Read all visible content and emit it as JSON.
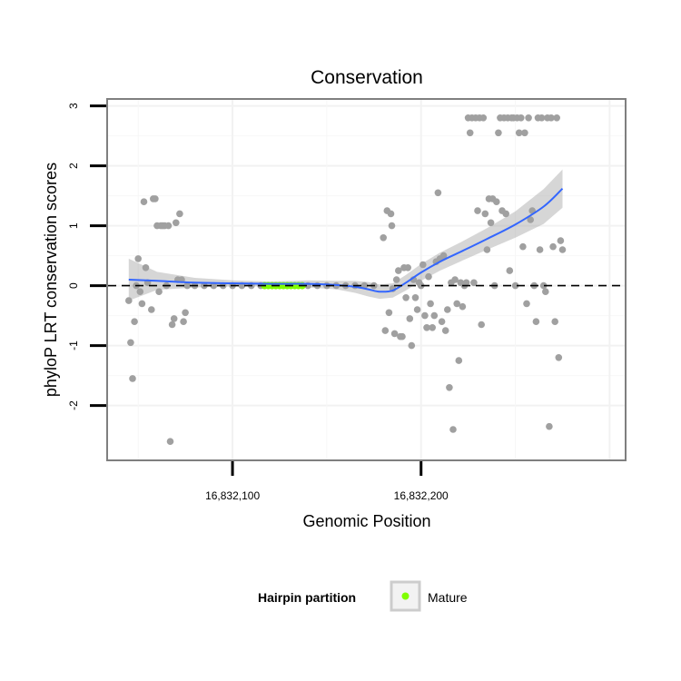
{
  "chart_data": {
    "type": "scatter",
    "title": "Conservation",
    "xlabel": "Genomic Position",
    "ylabel": "phyloP LRT conservation scores",
    "xlim": [
      16832034,
      16832308
    ],
    "ylim": [
      -2.9,
      3.1
    ],
    "x_ticks": [
      {
        "value": 16832100,
        "label": "16,832,100"
      },
      {
        "value": 16832200,
        "label": "16,832,200"
      }
    ],
    "y_ticks": [
      {
        "value": -2,
        "label": "-2"
      },
      {
        "value": -1,
        "label": "-1"
      },
      {
        "value": 0,
        "label": "0"
      },
      {
        "value": 1,
        "label": "1"
      },
      {
        "value": 2,
        "label": "2"
      },
      {
        "value": 3,
        "label": "3"
      }
    ],
    "reference_line": {
      "y": 0,
      "style": "dashed"
    },
    "grid": true,
    "points": [
      {
        "x": 16832045,
        "y": -0.25
      },
      {
        "x": 16832046,
        "y": -0.95
      },
      {
        "x": 16832047,
        "y": -1.55
      },
      {
        "x": 16832048,
        "y": -0.6
      },
      {
        "x": 16832049,
        "y": 0.0
      },
      {
        "x": 16832050,
        "y": 0.45
      },
      {
        "x": 16832051,
        "y": -0.1
      },
      {
        "x": 16832052,
        "y": -0.3
      },
      {
        "x": 16832053,
        "y": 1.4
      },
      {
        "x": 16832054,
        "y": 0.3
      },
      {
        "x": 16832055,
        "y": 0.05
      },
      {
        "x": 16832057,
        "y": -0.4
      },
      {
        "x": 16832058,
        "y": 1.45
      },
      {
        "x": 16832059,
        "y": 1.45
      },
      {
        "x": 16832060,
        "y": 1.0
      },
      {
        "x": 16832061,
        "y": -0.1
      },
      {
        "x": 16832062,
        "y": 1.0
      },
      {
        "x": 16832063,
        "y": 1.0
      },
      {
        "x": 16832064,
        "y": 1.0
      },
      {
        "x": 16832065,
        "y": 0.0
      },
      {
        "x": 16832066,
        "y": 1.0
      },
      {
        "x": 16832067,
        "y": -2.6
      },
      {
        "x": 16832068,
        "y": -0.65
      },
      {
        "x": 16832069,
        "y": -0.55
      },
      {
        "x": 16832070,
        "y": 1.05
      },
      {
        "x": 16832071,
        "y": 0.1
      },
      {
        "x": 16832072,
        "y": 1.2
      },
      {
        "x": 16832073,
        "y": 0.1
      },
      {
        "x": 16832074,
        "y": -0.6
      },
      {
        "x": 16832075,
        "y": -0.45
      },
      {
        "x": 16832076,
        "y": 0.0
      },
      {
        "x": 16832080,
        "y": 0.0
      },
      {
        "x": 16832085,
        "y": 0.0
      },
      {
        "x": 16832090,
        "y": 0.0
      },
      {
        "x": 16832095,
        "y": 0.0
      },
      {
        "x": 16832100,
        "y": 0.0
      },
      {
        "x": 16832105,
        "y": 0.0
      },
      {
        "x": 16832110,
        "y": 0.0
      },
      {
        "x": 16832115,
        "y": 0.0
      },
      {
        "x": 16832140,
        "y": 0.0
      },
      {
        "x": 16832145,
        "y": 0.0
      },
      {
        "x": 16832150,
        "y": 0.0
      },
      {
        "x": 16832155,
        "y": 0.0
      },
      {
        "x": 16832160,
        "y": 0.0
      },
      {
        "x": 16832165,
        "y": 0.0
      },
      {
        "x": 16832170,
        "y": 0.0
      },
      {
        "x": 16832175,
        "y": 0.0
      },
      {
        "x": 16832180,
        "y": 0.8
      },
      {
        "x": 16832181,
        "y": -0.75
      },
      {
        "x": 16832182,
        "y": 1.25
      },
      {
        "x": 16832183,
        "y": -0.45
      },
      {
        "x": 16832184,
        "y": 1.2
      },
      {
        "x": 16832184.5,
        "y": 1.0
      },
      {
        "x": 16832185,
        "y": -0.05
      },
      {
        "x": 16832186,
        "y": -0.8
      },
      {
        "x": 16832187,
        "y": 0.1
      },
      {
        "x": 16832188,
        "y": 0.25
      },
      {
        "x": 16832189,
        "y": -0.85
      },
      {
        "x": 16832190,
        "y": -0.85
      },
      {
        "x": 16832191,
        "y": 0.3
      },
      {
        "x": 16832192,
        "y": -0.2
      },
      {
        "x": 16832193,
        "y": 0.3
      },
      {
        "x": 16832194,
        "y": -0.55
      },
      {
        "x": 16832195,
        "y": -1.0
      },
      {
        "x": 16832196,
        "y": 0.1
      },
      {
        "x": 16832197,
        "y": -0.2
      },
      {
        "x": 16832198,
        "y": -0.4
      },
      {
        "x": 16832199,
        "y": 0.05
      },
      {
        "x": 16832200,
        "y": 0.0
      },
      {
        "x": 16832201,
        "y": 0.35
      },
      {
        "x": 16832202,
        "y": -0.5
      },
      {
        "x": 16832203,
        "y": -0.7
      },
      {
        "x": 16832204,
        "y": 0.15
      },
      {
        "x": 16832205,
        "y": -0.3
      },
      {
        "x": 16832206,
        "y": -0.7
      },
      {
        "x": 16832207,
        "y": -0.5
      },
      {
        "x": 16832208,
        "y": 0.4
      },
      {
        "x": 16832209,
        "y": 1.55
      },
      {
        "x": 16832210,
        "y": 0.45
      },
      {
        "x": 16832211,
        "y": -0.6
      },
      {
        "x": 16832212,
        "y": 0.5
      },
      {
        "x": 16832213,
        "y": -0.75
      },
      {
        "x": 16832214,
        "y": -0.4
      },
      {
        "x": 16832215,
        "y": -1.7
      },
      {
        "x": 16832216,
        "y": 0.05
      },
      {
        "x": 16832217,
        "y": -2.4
      },
      {
        "x": 16832218,
        "y": 0.1
      },
      {
        "x": 16832219,
        "y": -0.3
      },
      {
        "x": 16832220,
        "y": -1.25
      },
      {
        "x": 16832221,
        "y": 0.05
      },
      {
        "x": 16832222,
        "y": -0.35
      },
      {
        "x": 16832223,
        "y": 0.0
      },
      {
        "x": 16832224,
        "y": 0.05
      },
      {
        "x": 16832225,
        "y": 2.8
      },
      {
        "x": 16832226,
        "y": 2.55
      },
      {
        "x": 16832227,
        "y": 2.8
      },
      {
        "x": 16832228,
        "y": 0.05
      },
      {
        "x": 16832229,
        "y": 2.8
      },
      {
        "x": 16832230,
        "y": 1.25
      },
      {
        "x": 16832231,
        "y": 2.8
      },
      {
        "x": 16832232,
        "y": -0.65
      },
      {
        "x": 16832233,
        "y": 2.8
      },
      {
        "x": 16832234,
        "y": 1.2
      },
      {
        "x": 16832235,
        "y": 0.6
      },
      {
        "x": 16832236,
        "y": 1.45
      },
      {
        "x": 16832237,
        "y": 1.05
      },
      {
        "x": 16832238,
        "y": 1.45
      },
      {
        "x": 16832239,
        "y": 0.0
      },
      {
        "x": 16832240,
        "y": 1.4
      },
      {
        "x": 16832241,
        "y": 2.55
      },
      {
        "x": 16832242,
        "y": 2.8
      },
      {
        "x": 16832243,
        "y": 1.25
      },
      {
        "x": 16832244,
        "y": 2.8
      },
      {
        "x": 16832245,
        "y": 1.2
      },
      {
        "x": 16832246,
        "y": 2.8
      },
      {
        "x": 16832247,
        "y": 0.25
      },
      {
        "x": 16832248,
        "y": 2.8
      },
      {
        "x": 16832249,
        "y": 2.8
      },
      {
        "x": 16832250,
        "y": 0.0
      },
      {
        "x": 16832251,
        "y": 2.8
      },
      {
        "x": 16832252,
        "y": 2.55
      },
      {
        "x": 16832253,
        "y": 2.8
      },
      {
        "x": 16832254,
        "y": 0.65
      },
      {
        "x": 16832255,
        "y": 2.55
      },
      {
        "x": 16832256,
        "y": -0.3
      },
      {
        "x": 16832257,
        "y": 2.8
      },
      {
        "x": 16832258,
        "y": 1.1
      },
      {
        "x": 16832259,
        "y": 1.25
      },
      {
        "x": 16832260,
        "y": 0.0
      },
      {
        "x": 16832261,
        "y": -0.6
      },
      {
        "x": 16832262,
        "y": 2.8
      },
      {
        "x": 16832263,
        "y": 0.6
      },
      {
        "x": 16832264,
        "y": 2.8
      },
      {
        "x": 16832265,
        "y": 0.0
      },
      {
        "x": 16832266,
        "y": -0.1
      },
      {
        "x": 16832267,
        "y": 2.8
      },
      {
        "x": 16832268,
        "y": -2.35
      },
      {
        "x": 16832269,
        "y": 2.8
      },
      {
        "x": 16832270,
        "y": 0.65
      },
      {
        "x": 16832271,
        "y": -0.6
      },
      {
        "x": 16832272,
        "y": 2.8
      },
      {
        "x": 16832273,
        "y": -1.2
      },
      {
        "x": 16832274,
        "y": 0.75
      },
      {
        "x": 16832275,
        "y": 0.6
      }
    ],
    "mature_points": {
      "name": "Mature",
      "x": [
        16832117,
        16832119,
        16832121,
        16832123,
        16832125,
        16832127,
        16832129,
        16832131,
        16832133,
        16832135,
        16832137
      ],
      "y": 0.0
    },
    "smooth": {
      "x": [
        16832045,
        16832060,
        16832080,
        16832100,
        16832120,
        16832140,
        16832155,
        16832165,
        16832172,
        16832178,
        16832185,
        16832192,
        16832200,
        16832210,
        16832222,
        16832235,
        16832250,
        16832265,
        16832275
      ],
      "y": [
        0.1,
        0.08,
        0.05,
        0.04,
        0.03,
        0.03,
        0.01,
        -0.02,
        -0.06,
        -0.1,
        -0.08,
        0.05,
        0.22,
        0.4,
        0.58,
        0.78,
        1.02,
        1.32,
        1.62
      ],
      "lower": [
        -0.25,
        -0.07,
        -0.03,
        -0.01,
        -0.01,
        -0.03,
        -0.06,
        -0.12,
        -0.18,
        -0.22,
        -0.2,
        -0.08,
        0.08,
        0.25,
        0.42,
        0.6,
        0.8,
        1.03,
        1.3
      ],
      "upper": [
        0.45,
        0.23,
        0.13,
        0.09,
        0.07,
        0.09,
        0.08,
        0.08,
        0.06,
        0.02,
        0.04,
        0.18,
        0.36,
        0.55,
        0.74,
        0.96,
        1.24,
        1.61,
        1.94
      ]
    },
    "colors": {
      "point": "#a0a0a0",
      "mature": "#7fff00",
      "line": "#3366ff",
      "ribbon": "#999999",
      "panel_border": "#7f7f7f"
    },
    "legend": {
      "title": "Hairpin partition",
      "entries": [
        {
          "label": "Mature",
          "color": "#7fff00"
        }
      ],
      "placement": "bottom"
    }
  }
}
